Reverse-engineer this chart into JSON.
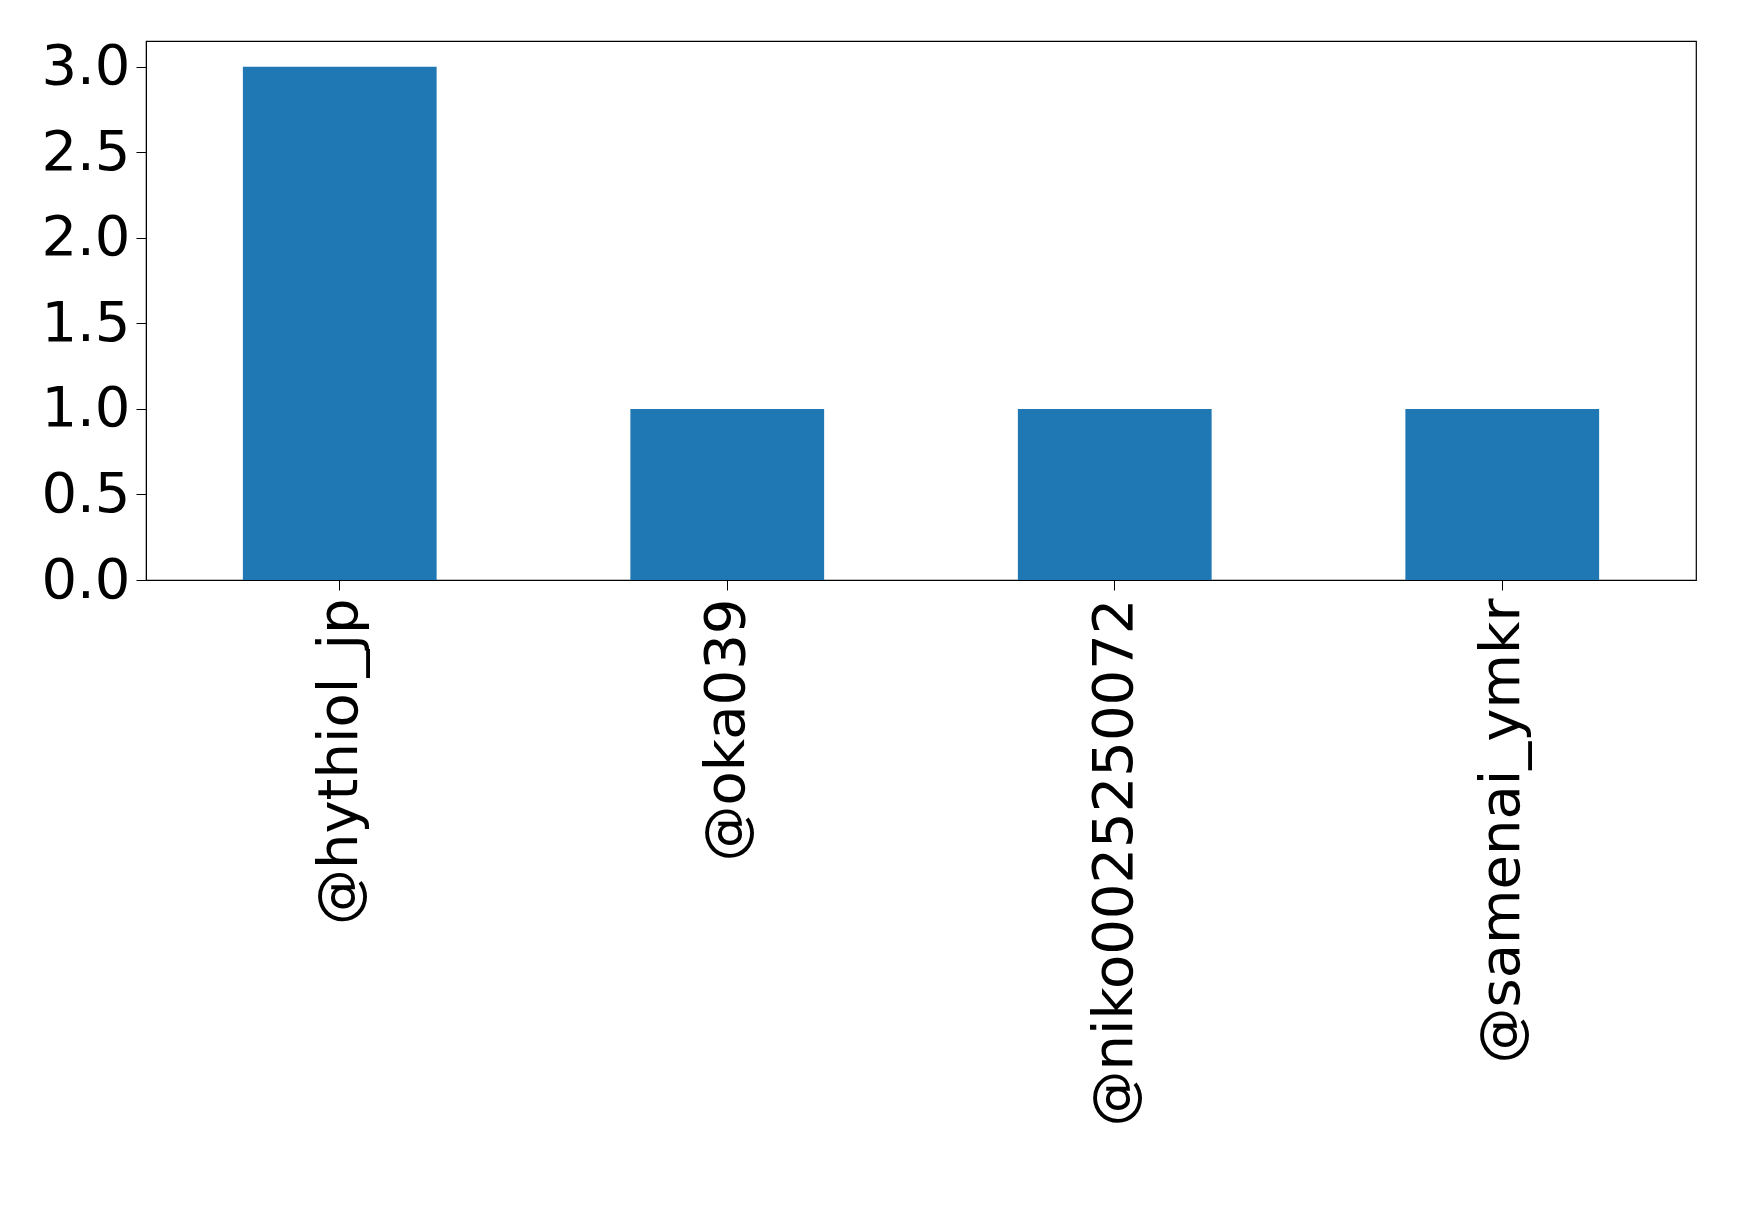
{
  "chart_data": {
    "type": "bar",
    "categories": [
      "@hythiol_jp",
      "@oka039",
      "@niko0025250072",
      "@samenai_ymkr"
    ],
    "values": [
      3,
      1,
      1,
      1
    ],
    "color": "#1f77b4",
    "ylim": [
      0,
      3.15
    ],
    "yticks": [
      {
        "value": 0,
        "label": "0.0"
      },
      {
        "value": 0.5,
        "label": "0.5"
      },
      {
        "value": 1,
        "label": "1.0"
      },
      {
        "value": 1.5,
        "label": "1.5"
      },
      {
        "value": 2,
        "label": "2.0"
      },
      {
        "value": 2.5,
        "label": "2.5"
      },
      {
        "value": 3,
        "label": "3.0"
      }
    ],
    "grid": false
  }
}
